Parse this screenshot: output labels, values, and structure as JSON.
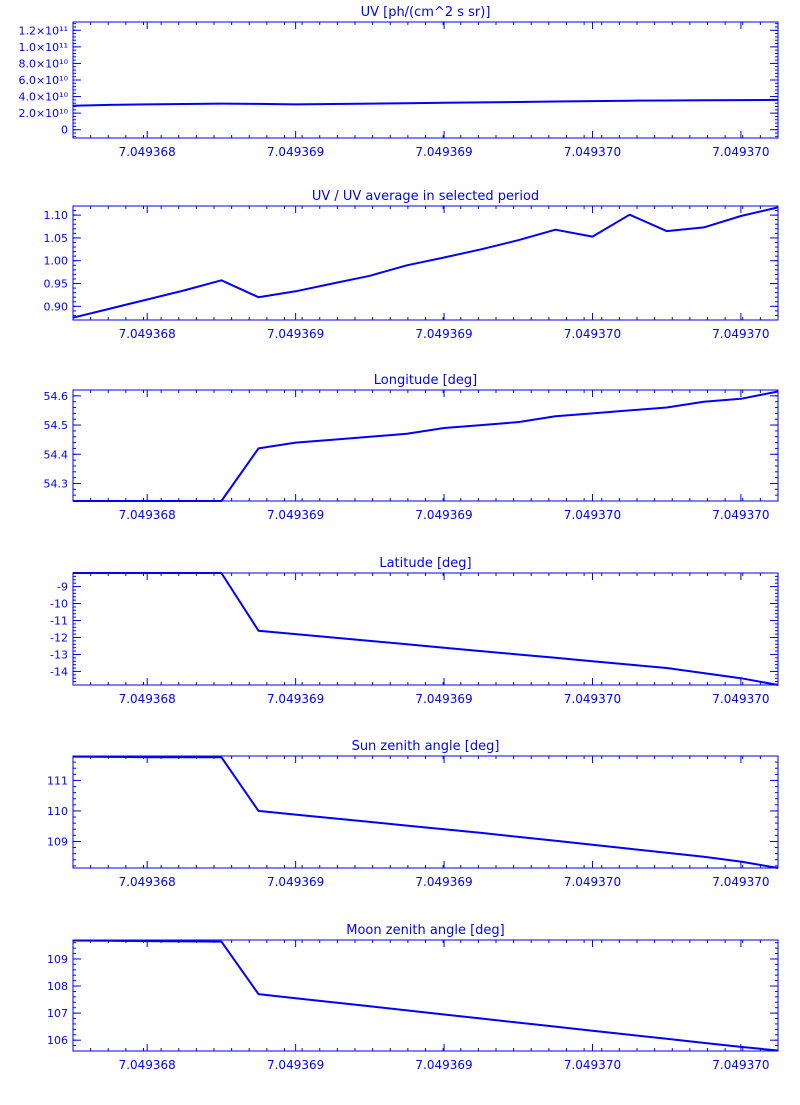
{
  "style": {
    "color": "#0000ff",
    "background": "#ffffff"
  },
  "chart_data": [
    {
      "type": "line",
      "title": "UV [ph/(cm^2 s sr)]",
      "xlabel": "",
      "ylabel": "",
      "x": [
        0,
        1,
        2,
        3,
        4,
        5,
        6,
        7,
        8,
        9,
        10,
        11,
        12,
        13,
        14,
        15,
        16,
        17,
        18,
        19
      ],
      "xtick_labels": [
        "7.049368",
        "7.049369",
        "7.049369",
        "7.049370",
        "7.049370"
      ],
      "xticks_at": [
        2,
        6,
        10,
        14,
        18
      ],
      "xlim": [
        0,
        19
      ],
      "ylim": [
        -10000000000.0,
        130000000000.0
      ],
      "yticks": [
        0,
        20000000000.0,
        40000000000.0,
        60000000000.0,
        80000000000.0,
        100000000000.0,
        120000000000.0
      ],
      "ytick_labels": [
        "0",
        "2.0×10¹⁰",
        "4.0×10¹⁰",
        "6.0×10¹⁰",
        "8.0×10¹⁰",
        "1.0×10¹¹",
        "1.2×10¹¹"
      ],
      "series": [
        {
          "values": [
            29000000000.0,
            30000000000.0,
            30500000000.0,
            31000000000.0,
            31500000000.0,
            31200000000.0,
            30500000000.0,
            31000000000.0,
            31500000000.0,
            32000000000.0,
            32500000000.0,
            33000000000.0,
            33500000000.0,
            34000000000.0,
            34500000000.0,
            35000000000.0,
            35200000000.0,
            35500000000.0,
            35800000000.0,
            36000000000.0
          ]
        }
      ]
    },
    {
      "type": "line",
      "title": "UV / UV average in selected period",
      "xlabel": "",
      "ylabel": "",
      "x": [
        0,
        4,
        5,
        10,
        12,
        18,
        19
      ],
      "xtick_labels": [
        "7.049368",
        "7.049369",
        "7.049369",
        "7.049370",
        "7.049370"
      ],
      "xticks_at": [
        2,
        6,
        10,
        14,
        18
      ],
      "xlim": [
        0,
        19
      ],
      "ylim": [
        0.87,
        1.12
      ],
      "yticks": [
        0.9,
        0.95,
        1.0,
        1.05,
        1.1
      ],
      "ytick_labels": [
        "0.90",
        "0.95",
        "1.00",
        "1.05",
        "1.10"
      ],
      "series": [
        {
          "x": [
            0,
            1,
            2,
            3,
            4,
            5,
            6,
            7,
            8,
            9,
            10,
            11,
            12,
            13,
            14,
            15,
            16,
            17,
            18,
            19
          ],
          "values": [
            0.875,
            0.895,
            0.915,
            0.935,
            0.957,
            0.92,
            0.933,
            0.95,
            0.967,
            0.99,
            1.007,
            1.025,
            1.045,
            1.068,
            1.053,
            1.101,
            1.065,
            1.073,
            1.098,
            1.117
          ]
        }
      ]
    },
    {
      "type": "line",
      "title": "Longitude [deg]",
      "xlabel": "",
      "ylabel": "",
      "x": [
        0,
        1,
        2,
        3,
        4,
        5,
        6,
        7,
        8,
        9,
        10,
        11,
        12,
        13,
        14,
        15,
        16,
        17,
        18,
        19
      ],
      "xtick_labels": [
        "7.049368",
        "7.049369",
        "7.049369",
        "7.049370",
        "7.049370"
      ],
      "xticks_at": [
        2,
        6,
        10,
        14,
        18
      ],
      "xlim": [
        0,
        19
      ],
      "ylim": [
        54.24,
        54.62
      ],
      "yticks": [
        54.3,
        54.4,
        54.5,
        54.6
      ],
      "ytick_labels": [
        "54.3",
        "54.4",
        "54.5",
        "54.6"
      ],
      "series": [
        {
          "values": [
            54.24,
            54.24,
            54.24,
            54.24,
            54.24,
            54.42,
            54.44,
            54.45,
            54.46,
            54.47,
            54.49,
            54.5,
            54.51,
            54.53,
            54.54,
            54.55,
            54.56,
            54.58,
            54.59,
            54.615
          ]
        }
      ]
    },
    {
      "type": "line",
      "title": "Latitude [deg]",
      "xlabel": "",
      "ylabel": "",
      "x": [
        0,
        1,
        2,
        3,
        4,
        5,
        6,
        7,
        8,
        9,
        10,
        11,
        12,
        13,
        14,
        15,
        16,
        17,
        18,
        19
      ],
      "xtick_labels": [
        "7.049368",
        "7.049369",
        "7.049369",
        "7.049370",
        "7.049370"
      ],
      "xticks_at": [
        2,
        6,
        10,
        14,
        18
      ],
      "xlim": [
        0,
        19
      ],
      "ylim": [
        -14.8,
        -8.2
      ],
      "yticks": [
        -14,
        -13,
        -12,
        -11,
        -10,
        -9
      ],
      "ytick_labels": [
        "-14",
        "-13",
        "-12",
        "-11",
        "-10",
        "-9"
      ],
      "series": [
        {
          "values": [
            -8.2,
            -8.2,
            -8.2,
            -8.2,
            -8.2,
            -11.6,
            -11.8,
            -12.0,
            -12.2,
            -12.4,
            -12.6,
            -12.8,
            -13.0,
            -13.2,
            -13.4,
            -13.6,
            -13.8,
            -14.1,
            -14.4,
            -14.8
          ]
        }
      ]
    },
    {
      "type": "line",
      "title": "Sun zenith angle [deg]",
      "xlabel": "",
      "ylabel": "",
      "x": [
        0,
        1,
        2,
        3,
        4,
        5,
        6,
        7,
        8,
        9,
        10,
        11,
        12,
        13,
        14,
        15,
        16,
        17,
        18,
        19
      ],
      "xtick_labels": [
        "7.049368",
        "7.049369",
        "7.049369",
        "7.049370",
        "7.049370"
      ],
      "xticks_at": [
        2,
        6,
        10,
        14,
        18
      ],
      "xlim": [
        0,
        19
      ],
      "ylim": [
        108.13,
        111.8
      ],
      "yticks": [
        109,
        110,
        111
      ],
      "ytick_labels": [
        "109",
        "110",
        "111"
      ],
      "series": [
        {
          "values": [
            111.78,
            111.77,
            111.76,
            111.76,
            111.76,
            110.0,
            109.88,
            109.76,
            109.64,
            109.52,
            109.4,
            109.28,
            109.15,
            109.02,
            108.89,
            108.76,
            108.63,
            108.5,
            108.34,
            108.13
          ]
        }
      ]
    },
    {
      "type": "line",
      "title": "Moon zenith angle [deg]",
      "xlabel": "",
      "ylabel": "",
      "x": [
        0,
        1,
        2,
        3,
        4,
        5,
        6,
        7,
        8,
        9,
        10,
        11,
        12,
        13,
        14,
        15,
        16,
        17,
        18,
        19
      ],
      "xtick_labels": [
        "7.049368",
        "7.049369",
        "7.049369",
        "7.049370",
        "7.049370"
      ],
      "xticks_at": [
        2,
        6,
        10,
        14,
        18
      ],
      "xlim": [
        0,
        19
      ],
      "ylim": [
        105.6,
        109.7
      ],
      "yticks": [
        106,
        107,
        108,
        109
      ],
      "ytick_labels": [
        "106",
        "107",
        "108",
        "109"
      ],
      "series": [
        {
          "values": [
            109.68,
            109.67,
            109.66,
            109.65,
            109.64,
            107.7,
            107.55,
            107.4,
            107.25,
            107.1,
            106.95,
            106.8,
            106.65,
            106.5,
            106.35,
            106.2,
            106.05,
            105.9,
            105.75,
            105.62
          ]
        }
      ]
    }
  ]
}
